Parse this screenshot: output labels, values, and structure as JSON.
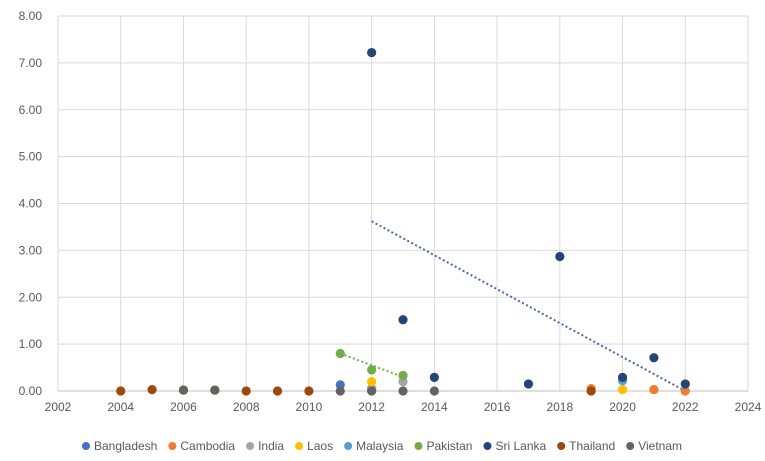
{
  "chart_data": {
    "type": "scatter",
    "xlim": [
      2002,
      2024
    ],
    "ylim": [
      0,
      8
    ],
    "x_ticks": [
      "2002",
      "2004",
      "2006",
      "2008",
      "2010",
      "2012",
      "2014",
      "2016",
      "2018",
      "2020",
      "2022",
      "2024"
    ],
    "y_ticks": [
      "0.00",
      "1.00",
      "2.00",
      "3.00",
      "4.00",
      "5.00",
      "6.00",
      "7.00",
      "8.00"
    ],
    "grid": true,
    "legend_position": "bottom",
    "series": [
      {
        "name": "Bangladesh",
        "color": "#4472c4",
        "points": [
          [
            2011,
            0.13
          ],
          [
            2012,
            0.05
          ]
        ]
      },
      {
        "name": "Cambodia",
        "color": "#ed7d31",
        "points": [
          [
            2012,
            0.05
          ],
          [
            2019,
            0.05
          ],
          [
            2021,
            0.03
          ],
          [
            2022,
            0.0
          ]
        ]
      },
      {
        "name": "India",
        "color": "#a5a5a5",
        "points": [
          [
            2012,
            0.03
          ],
          [
            2013,
            0.2
          ]
        ]
      },
      {
        "name": "Laos",
        "color": "#ffc000",
        "points": [
          [
            2012,
            0.2
          ],
          [
            2020,
            0.03
          ]
        ]
      },
      {
        "name": "Malaysia",
        "color": "#5b9bd5",
        "points": [
          [
            2020,
            0.22
          ]
        ]
      },
      {
        "name": "Pakistan",
        "color": "#70ad47",
        "points": [
          [
            2011,
            0.8
          ],
          [
            2012,
            0.45
          ],
          [
            2013,
            0.33
          ]
        ]
      },
      {
        "name": "Sri Lanka",
        "color": "#264478",
        "points": [
          [
            2012,
            7.22
          ],
          [
            2013,
            1.52
          ],
          [
            2014,
            0.29
          ],
          [
            2017,
            0.15
          ],
          [
            2018,
            2.87
          ],
          [
            2020,
            0.29
          ],
          [
            2021,
            0.71
          ],
          [
            2022,
            0.15
          ]
        ]
      },
      {
        "name": "Thailand",
        "color": "#9e480e",
        "points": [
          [
            2004,
            0.0
          ],
          [
            2005,
            0.03
          ],
          [
            2006,
            0.02
          ],
          [
            2007,
            0.02
          ],
          [
            2008,
            0.0
          ],
          [
            2009,
            0.0
          ],
          [
            2010,
            0.0
          ],
          [
            2019,
            0.0
          ]
        ]
      },
      {
        "name": "Vietnam",
        "color": "#636363",
        "points": [
          [
            2006,
            0.02
          ],
          [
            2007,
            0.02
          ],
          [
            2011,
            0.0
          ],
          [
            2012,
            0.0
          ],
          [
            2013,
            0.0
          ],
          [
            2014,
            0.0
          ]
        ]
      }
    ],
    "trendlines": [
      {
        "series": "Pakistan",
        "color": "#70ad47",
        "from": [
          2011,
          0.8
        ],
        "to": [
          2013,
          0.3
        ]
      },
      {
        "series": "Sri Lanka",
        "color": "#4a64b0",
        "from": [
          2012,
          3.62
        ],
        "to": [
          2022,
          0.0
        ]
      }
    ]
  }
}
